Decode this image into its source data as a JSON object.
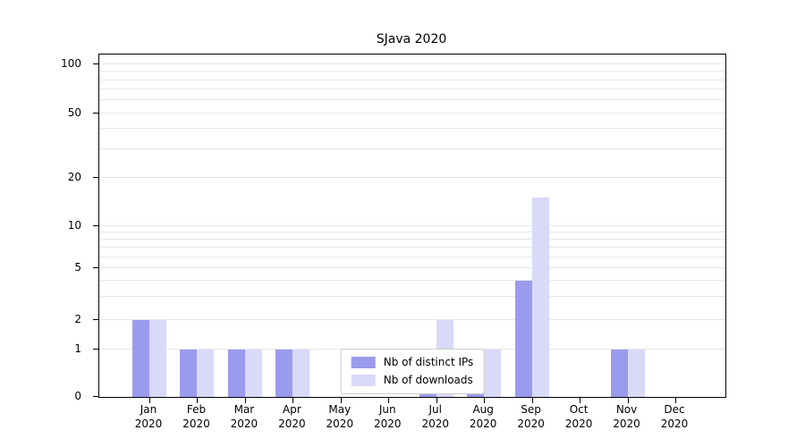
{
  "chart_data": {
    "type": "bar",
    "title": "SJava 2020",
    "categories": [
      "Jan",
      "Feb",
      "Mar",
      "Apr",
      "May",
      "Jun",
      "Jul",
      "Aug",
      "Sep",
      "Oct",
      "Nov",
      "Dec"
    ],
    "x_year_label": "2020",
    "series": [
      {
        "name": "Nb of distinct IPs",
        "color": "#9b9bee",
        "values": [
          2,
          1,
          1,
          1,
          0,
          0,
          1,
          1,
          4,
          0,
          1,
          0
        ]
      },
      {
        "name": "Nb of downloads",
        "color": "#d9d9f8",
        "values": [
          2,
          1,
          1,
          1,
          0,
          0,
          2,
          1,
          15,
          0,
          1,
          0
        ]
      }
    ],
    "yticks": [
      0,
      1,
      2,
      5,
      10,
      20,
      50,
      100
    ],
    "ylim": [
      0,
      100
    ],
    "yscale": "log-with-zero",
    "grid": "horizontal-minor-log",
    "legend_position": "bottom-center"
  }
}
